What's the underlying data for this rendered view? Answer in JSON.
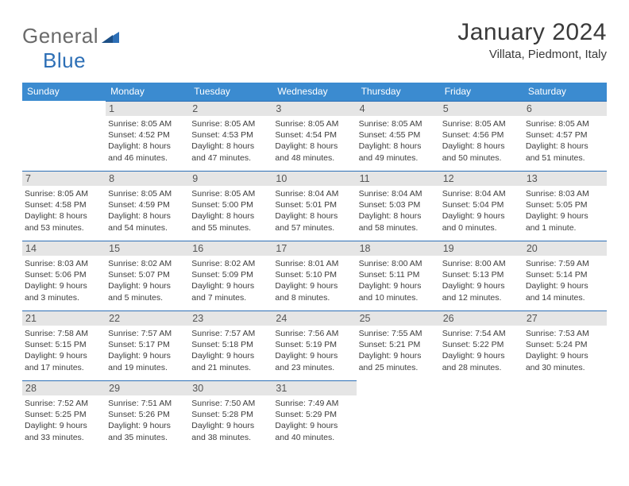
{
  "brand": {
    "part1": "General",
    "part2": "Blue"
  },
  "title": "January 2024",
  "location": "Villata, Piedmont, Italy",
  "colors": {
    "header_bg": "#3b8bd0",
    "header_fg": "#ffffff",
    "rule": "#2d6fb6",
    "daynum_bg": "#e5e5e5",
    "logo_gray": "#6a6a6a",
    "logo_blue": "#2d6fb6"
  },
  "typography": {
    "title_size_pt": 22,
    "location_size_pt": 11,
    "dow_size_pt": 9,
    "body_size_pt": 8
  },
  "dow": [
    "Sunday",
    "Monday",
    "Tuesday",
    "Wednesday",
    "Thursday",
    "Friday",
    "Saturday"
  ],
  "weeks": [
    [
      null,
      {
        "n": "1",
        "sr": "Sunrise: 8:05 AM",
        "ss": "Sunset: 4:52 PM",
        "d1": "Daylight: 8 hours",
        "d2": "and 46 minutes."
      },
      {
        "n": "2",
        "sr": "Sunrise: 8:05 AM",
        "ss": "Sunset: 4:53 PM",
        "d1": "Daylight: 8 hours",
        "d2": "and 47 minutes."
      },
      {
        "n": "3",
        "sr": "Sunrise: 8:05 AM",
        "ss": "Sunset: 4:54 PM",
        "d1": "Daylight: 8 hours",
        "d2": "and 48 minutes."
      },
      {
        "n": "4",
        "sr": "Sunrise: 8:05 AM",
        "ss": "Sunset: 4:55 PM",
        "d1": "Daylight: 8 hours",
        "d2": "and 49 minutes."
      },
      {
        "n": "5",
        "sr": "Sunrise: 8:05 AM",
        "ss": "Sunset: 4:56 PM",
        "d1": "Daylight: 8 hours",
        "d2": "and 50 minutes."
      },
      {
        "n": "6",
        "sr": "Sunrise: 8:05 AM",
        "ss": "Sunset: 4:57 PM",
        "d1": "Daylight: 8 hours",
        "d2": "and 51 minutes."
      }
    ],
    [
      {
        "n": "7",
        "sr": "Sunrise: 8:05 AM",
        "ss": "Sunset: 4:58 PM",
        "d1": "Daylight: 8 hours",
        "d2": "and 53 minutes."
      },
      {
        "n": "8",
        "sr": "Sunrise: 8:05 AM",
        "ss": "Sunset: 4:59 PM",
        "d1": "Daylight: 8 hours",
        "d2": "and 54 minutes."
      },
      {
        "n": "9",
        "sr": "Sunrise: 8:05 AM",
        "ss": "Sunset: 5:00 PM",
        "d1": "Daylight: 8 hours",
        "d2": "and 55 minutes."
      },
      {
        "n": "10",
        "sr": "Sunrise: 8:04 AM",
        "ss": "Sunset: 5:01 PM",
        "d1": "Daylight: 8 hours",
        "d2": "and 57 minutes."
      },
      {
        "n": "11",
        "sr": "Sunrise: 8:04 AM",
        "ss": "Sunset: 5:03 PM",
        "d1": "Daylight: 8 hours",
        "d2": "and 58 minutes."
      },
      {
        "n": "12",
        "sr": "Sunrise: 8:04 AM",
        "ss": "Sunset: 5:04 PM",
        "d1": "Daylight: 9 hours",
        "d2": "and 0 minutes."
      },
      {
        "n": "13",
        "sr": "Sunrise: 8:03 AM",
        "ss": "Sunset: 5:05 PM",
        "d1": "Daylight: 9 hours",
        "d2": "and 1 minute."
      }
    ],
    [
      {
        "n": "14",
        "sr": "Sunrise: 8:03 AM",
        "ss": "Sunset: 5:06 PM",
        "d1": "Daylight: 9 hours",
        "d2": "and 3 minutes."
      },
      {
        "n": "15",
        "sr": "Sunrise: 8:02 AM",
        "ss": "Sunset: 5:07 PM",
        "d1": "Daylight: 9 hours",
        "d2": "and 5 minutes."
      },
      {
        "n": "16",
        "sr": "Sunrise: 8:02 AM",
        "ss": "Sunset: 5:09 PM",
        "d1": "Daylight: 9 hours",
        "d2": "and 7 minutes."
      },
      {
        "n": "17",
        "sr": "Sunrise: 8:01 AM",
        "ss": "Sunset: 5:10 PM",
        "d1": "Daylight: 9 hours",
        "d2": "and 8 minutes."
      },
      {
        "n": "18",
        "sr": "Sunrise: 8:00 AM",
        "ss": "Sunset: 5:11 PM",
        "d1": "Daylight: 9 hours",
        "d2": "and 10 minutes."
      },
      {
        "n": "19",
        "sr": "Sunrise: 8:00 AM",
        "ss": "Sunset: 5:13 PM",
        "d1": "Daylight: 9 hours",
        "d2": "and 12 minutes."
      },
      {
        "n": "20",
        "sr": "Sunrise: 7:59 AM",
        "ss": "Sunset: 5:14 PM",
        "d1": "Daylight: 9 hours",
        "d2": "and 14 minutes."
      }
    ],
    [
      {
        "n": "21",
        "sr": "Sunrise: 7:58 AM",
        "ss": "Sunset: 5:15 PM",
        "d1": "Daylight: 9 hours",
        "d2": "and 17 minutes."
      },
      {
        "n": "22",
        "sr": "Sunrise: 7:57 AM",
        "ss": "Sunset: 5:17 PM",
        "d1": "Daylight: 9 hours",
        "d2": "and 19 minutes."
      },
      {
        "n": "23",
        "sr": "Sunrise: 7:57 AM",
        "ss": "Sunset: 5:18 PM",
        "d1": "Daylight: 9 hours",
        "d2": "and 21 minutes."
      },
      {
        "n": "24",
        "sr": "Sunrise: 7:56 AM",
        "ss": "Sunset: 5:19 PM",
        "d1": "Daylight: 9 hours",
        "d2": "and 23 minutes."
      },
      {
        "n": "25",
        "sr": "Sunrise: 7:55 AM",
        "ss": "Sunset: 5:21 PM",
        "d1": "Daylight: 9 hours",
        "d2": "and 25 minutes."
      },
      {
        "n": "26",
        "sr": "Sunrise: 7:54 AM",
        "ss": "Sunset: 5:22 PM",
        "d1": "Daylight: 9 hours",
        "d2": "and 28 minutes."
      },
      {
        "n": "27",
        "sr": "Sunrise: 7:53 AM",
        "ss": "Sunset: 5:24 PM",
        "d1": "Daylight: 9 hours",
        "d2": "and 30 minutes."
      }
    ],
    [
      {
        "n": "28",
        "sr": "Sunrise: 7:52 AM",
        "ss": "Sunset: 5:25 PM",
        "d1": "Daylight: 9 hours",
        "d2": "and 33 minutes."
      },
      {
        "n": "29",
        "sr": "Sunrise: 7:51 AM",
        "ss": "Sunset: 5:26 PM",
        "d1": "Daylight: 9 hours",
        "d2": "and 35 minutes."
      },
      {
        "n": "30",
        "sr": "Sunrise: 7:50 AM",
        "ss": "Sunset: 5:28 PM",
        "d1": "Daylight: 9 hours",
        "d2": "and 38 minutes."
      },
      {
        "n": "31",
        "sr": "Sunrise: 7:49 AM",
        "ss": "Sunset: 5:29 PM",
        "d1": "Daylight: 9 hours",
        "d2": "and 40 minutes."
      },
      null,
      null,
      null
    ]
  ]
}
